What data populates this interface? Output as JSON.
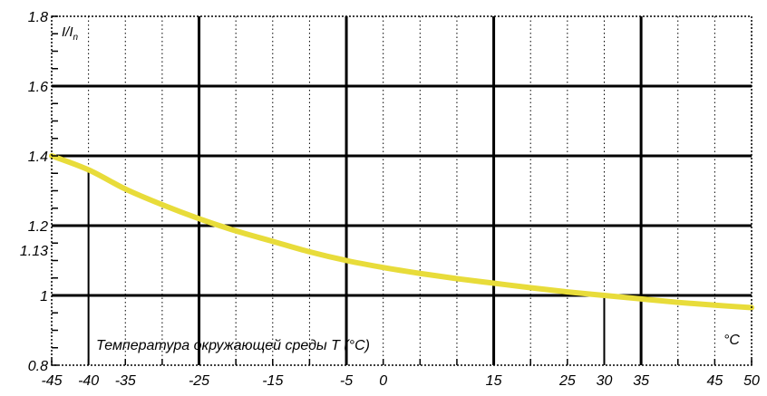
{
  "chart_data": {
    "type": "line",
    "xlabel": "Температура окружающей среды T (°C)",
    "xunit": "°C",
    "ylabel_main": "I/I",
    "ylabel_sub": "n",
    "xlim": [
      -45,
      50
    ],
    "ylim": [
      0.8,
      1.8
    ],
    "x_tick_labels": [
      {
        "value": -45,
        "label": "-45"
      },
      {
        "value": -40,
        "label": "-40"
      },
      {
        "value": -35,
        "label": "-35"
      },
      {
        "value": -25,
        "label": "-25"
      },
      {
        "value": -15,
        "label": "-15"
      },
      {
        "value": -5,
        "label": "-5"
      },
      {
        "value": 0,
        "label": "0"
      },
      {
        "value": 15,
        "label": "15"
      },
      {
        "value": 25,
        "label": "25"
      },
      {
        "value": 30,
        "label": "30"
      },
      {
        "value": 35,
        "label": "35"
      },
      {
        "value": 45,
        "label": "45"
      },
      {
        "value": 50,
        "label": "50"
      }
    ],
    "y_tick_labels": [
      {
        "value": 0.8,
        "label": "0.8"
      },
      {
        "value": 1.0,
        "label": "1"
      },
      {
        "value": 1.13,
        "label": "1.13"
      },
      {
        "value": 1.2,
        "label": "1.2"
      },
      {
        "value": 1.4,
        "label": "1.4"
      },
      {
        "value": 1.6,
        "label": "1.6"
      },
      {
        "value": 1.8,
        "label": "1.8"
      }
    ],
    "major_x_gridlines": [
      -25,
      -5,
      15,
      35
    ],
    "major_y_gridlines": [
      1.0,
      1.2,
      1.4,
      1.6
    ],
    "reference_lines": [
      {
        "x": -40,
        "y": 1.36
      },
      {
        "x": 30,
        "y": 1.0
      }
    ],
    "series": [
      {
        "color": "#e8dc3a",
        "x": [
          -45,
          -40,
          -35,
          -30,
          -25,
          -20,
          -15,
          -10,
          -5,
          0,
          5,
          10,
          15,
          20,
          25,
          30,
          35,
          40,
          45,
          50
        ],
        "y": [
          1.4,
          1.36,
          1.305,
          1.26,
          1.22,
          1.185,
          1.155,
          1.125,
          1.1,
          1.08,
          1.063,
          1.048,
          1.035,
          1.022,
          1.01,
          1.0,
          0.99,
          0.98,
          0.972,
          0.965
        ]
      }
    ]
  }
}
